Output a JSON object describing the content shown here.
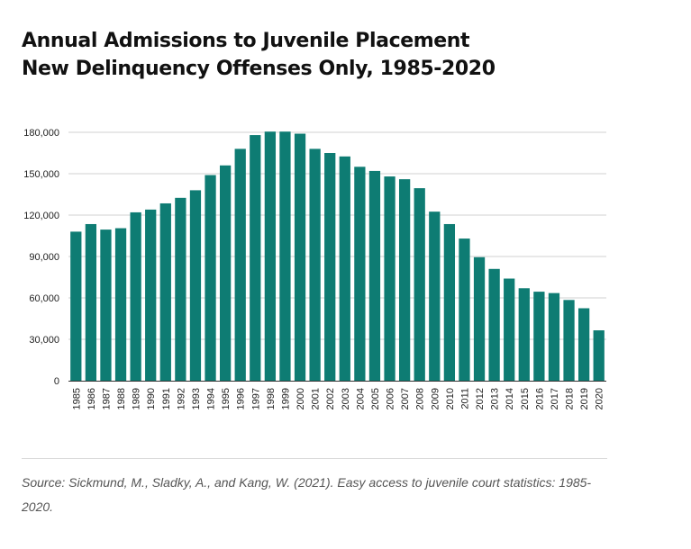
{
  "page": {
    "title_line1": "Annual Admissions to Juvenile Placement",
    "title_line2": "New Delinquency Offenses Only, 1985-2020",
    "source": "Source: Sickmund, M., Sladky, A., and Kang, W. (2021). Easy access to juvenile court statistics: 1985-2020."
  },
  "colors": {
    "bar": "#0e7c73",
    "grid": "#d0d0d0",
    "axis": "#333333",
    "text": "#222222"
  },
  "chart_data": {
    "type": "bar",
    "title": "Annual Admissions to Juvenile Placement New Delinquency Offenses Only, 1985-2020",
    "xlabel": "",
    "ylabel": "",
    "ylim": [
      0,
      180000
    ],
    "yticks": [
      0,
      30000,
      60000,
      90000,
      120000,
      150000,
      180000
    ],
    "ytick_labels": [
      "0",
      "30,000",
      "60,000",
      "90,000",
      "120,000",
      "150,000",
      "180,000"
    ],
    "grid": true,
    "legend": "none",
    "categories": [
      "1985",
      "1986",
      "1987",
      "1988",
      "1989",
      "1990",
      "1991",
      "1992",
      "1993",
      "1994",
      "1995",
      "1996",
      "1997",
      "1998",
      "1999",
      "2000",
      "2001",
      "2002",
      "2003",
      "2004",
      "2005",
      "2006",
      "2007",
      "2008",
      "2009",
      "2010",
      "2011",
      "2012",
      "2013",
      "2014",
      "2015",
      "2016",
      "2017",
      "2018",
      "2019",
      "2020"
    ],
    "values": [
      108000,
      113500,
      109500,
      110500,
      122000,
      124000,
      128500,
      132500,
      138000,
      149000,
      156000,
      168000,
      178000,
      180500,
      180500,
      179000,
      168000,
      165000,
      162500,
      155000,
      152000,
      148000,
      146000,
      139500,
      122500,
      113500,
      103000,
      89500,
      81000,
      74000,
      67000,
      64500,
      63500,
      58500,
      52500,
      36500
    ]
  }
}
